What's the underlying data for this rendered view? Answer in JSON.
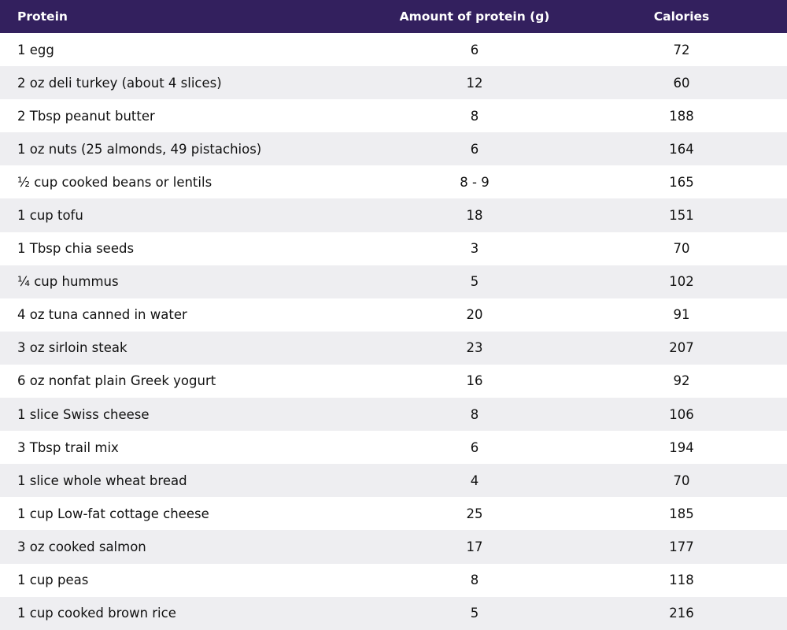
{
  "colors": {
    "header_bg": "#33205e",
    "stripe_bg": "#eeeef1"
  },
  "table": {
    "headers": {
      "protein": "Protein",
      "amount": "Amount of protein (g)",
      "calories": "Calories"
    },
    "rows": [
      {
        "name": "1 egg",
        "protein": "6",
        "calories": "72"
      },
      {
        "name": "2 oz deli turkey (about 4 slices)",
        "protein": "12",
        "calories": "60"
      },
      {
        "name": "2 Tbsp peanut butter",
        "protein": "8",
        "calories": "188"
      },
      {
        "name": "1 oz nuts (25 almonds, 49 pistachios)",
        "protein": "6",
        "calories": "164"
      },
      {
        "name": "½ cup cooked beans or lentils",
        "protein": "8 - 9",
        "calories": "165"
      },
      {
        "name": "1 cup tofu",
        "protein": "18",
        "calories": "151"
      },
      {
        "name": "1 Tbsp chia seeds",
        "protein": "3",
        "calories": "70"
      },
      {
        "name": "¼ cup hummus",
        "protein": "5",
        "calories": "102"
      },
      {
        "name": "4 oz tuna canned in water",
        "protein": "20",
        "calories": "91"
      },
      {
        "name": "3 oz sirloin steak",
        "protein": "23",
        "calories": "207"
      },
      {
        "name": "6 oz nonfat plain Greek yogurt",
        "protein": "16",
        "calories": "92"
      },
      {
        "name": "1 slice Swiss cheese",
        "protein": "8",
        "calories": "106"
      },
      {
        "name": "3 Tbsp trail mix",
        "protein": "6",
        "calories": "194"
      },
      {
        "name": "1 slice whole wheat bread",
        "protein": "4",
        "calories": "70"
      },
      {
        "name": "1 cup Low-fat cottage cheese",
        "protein": "25",
        "calories": "185"
      },
      {
        "name": "3 oz cooked salmon",
        "protein": "17",
        "calories": "177"
      },
      {
        "name": "1 cup peas",
        "protein": "8",
        "calories": "118"
      },
      {
        "name": "1 cup cooked brown rice",
        "protein": "5",
        "calories": "216"
      }
    ]
  }
}
